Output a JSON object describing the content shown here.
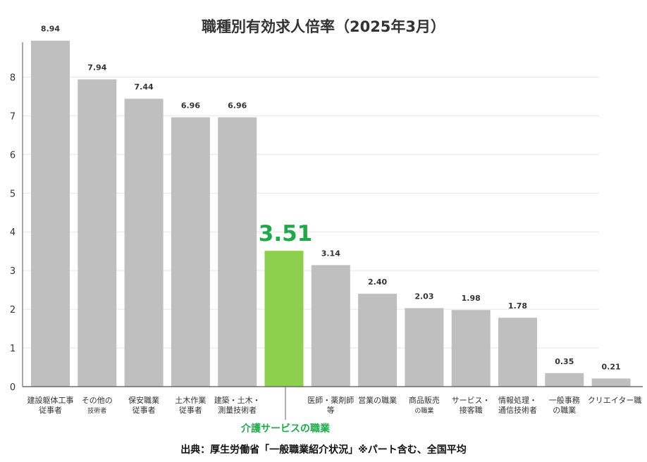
{
  "chart_data": {
    "type": "bar",
    "title": "職種別有効求人倍率（2025年3月）",
    "source": "出典：厚生労働省「一般職業紹介状況」※パート含む、全国平均",
    "highlight_label": "介護サービスの職業",
    "highlight_index": 5,
    "ylim": [
      0,
      9
    ],
    "yticks": [
      0,
      1,
      2,
      3,
      4,
      5,
      6,
      7,
      8
    ],
    "grid": true,
    "legend": "none",
    "colors": {
      "bar": "#bfbfbf",
      "highlight": "#8fcf4f",
      "highlight_text": "#1fa94b",
      "grid": "#e6e6e6",
      "axis": "#555555"
    },
    "categories": [
      [
        "建設躯体工事",
        "従事者"
      ],
      [
        "その他の",
        "技術者"
      ],
      [
        "保安職業",
        "従事者"
      ],
      [
        "土木作業",
        "従事者"
      ],
      [
        "建築・土木・",
        "測量技術者"
      ],
      [],
      [
        "医師・薬剤師",
        "等"
      ],
      [
        "営業の職業"
      ],
      [
        "商品販売",
        "の職業"
      ],
      [
        "サービス・",
        "接客職"
      ],
      [
        "情報処理・",
        "通信技術者"
      ],
      [
        "一般事務",
        "の職業"
      ],
      [
        "クリエイター職"
      ]
    ],
    "values": [
      8.94,
      7.94,
      7.44,
      6.96,
      6.96,
      3.51,
      3.14,
      2.4,
      2.03,
      1.98,
      1.78,
      0.35,
      0.21
    ],
    "value_labels": [
      "8.94",
      "7.94",
      "7.44",
      "6.96",
      "6.96",
      "3.51",
      "3.14",
      "2.40",
      "2.03",
      "1.98",
      "1.78",
      "0.35",
      "0.21"
    ]
  }
}
